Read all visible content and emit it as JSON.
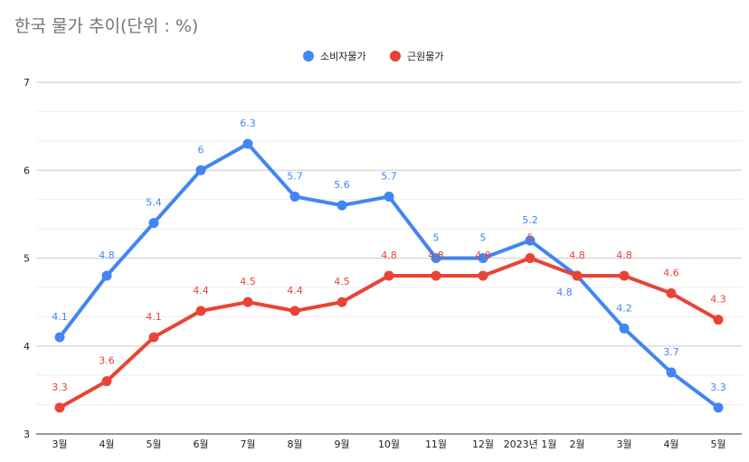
{
  "chart_data": {
    "type": "line",
    "title": "한국 물가 추이(단위 : %)",
    "categories": [
      "3월",
      "4월",
      "5월",
      "6월",
      "7월",
      "8월",
      "9월",
      "10월",
      "11월",
      "12월",
      "2023년 1월",
      "2월",
      "3월",
      "4월",
      "5월"
    ],
    "series": [
      {
        "name": "소비자물가",
        "color": "#4285f4",
        "values": [
          4.1,
          4.8,
          5.4,
          6,
          6.3,
          5.7,
          5.6,
          5.7,
          5,
          5,
          5.2,
          4.8,
          4.2,
          3.7,
          3.3
        ]
      },
      {
        "name": "근원물가",
        "color": "#ea4335",
        "values": [
          3.3,
          3.6,
          4.1,
          4.4,
          4.5,
          4.4,
          4.5,
          4.8,
          4.8,
          4.8,
          5,
          4.8,
          4.8,
          4.6,
          4.3
        ]
      }
    ],
    "ylim": [
      3,
      7
    ],
    "yticks": [
      3,
      4,
      5,
      6,
      7
    ],
    "grid": true,
    "legend": "top-center",
    "data_labels": true
  }
}
